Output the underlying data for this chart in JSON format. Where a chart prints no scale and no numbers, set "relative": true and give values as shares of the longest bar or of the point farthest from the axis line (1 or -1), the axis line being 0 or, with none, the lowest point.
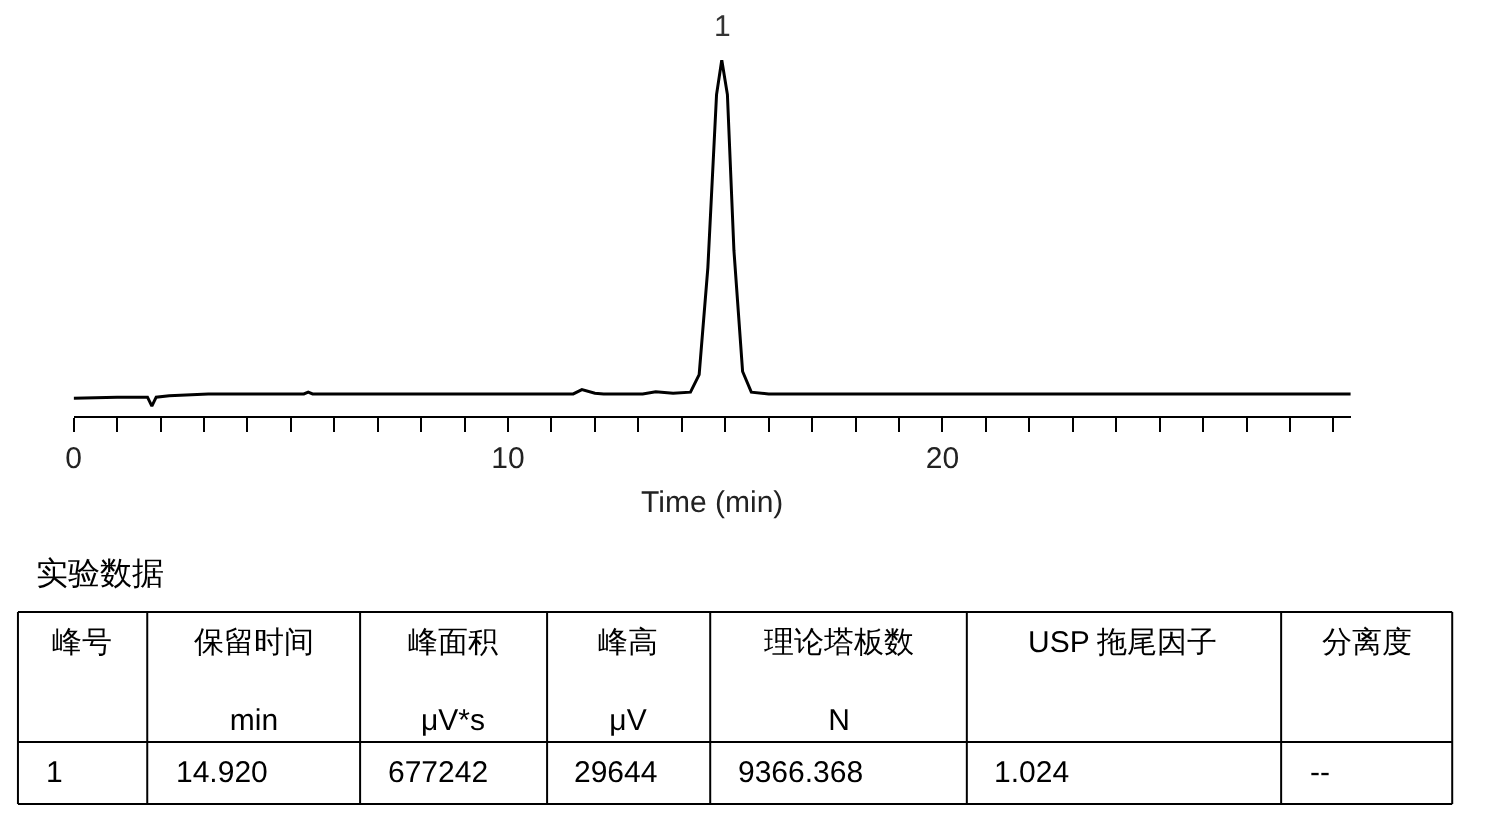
{
  "chart_data": [
    {
      "type": "line",
      "relative": true,
      "xlabel": "Time (min)",
      "x": [
        0,
        1.0,
        1.7,
        1.8,
        1.9,
        2.2,
        3.1,
        5.3,
        5.4,
        5.5,
        11.5,
        11.7,
        12.0,
        12.2,
        13.1,
        13.4,
        13.8,
        14.2,
        14.4,
        14.6,
        14.8,
        14.92,
        15.05,
        15.2,
        15.4,
        15.6,
        16.0,
        29.4
      ],
      "series": [
        {
          "color": "#000000",
          "values": [
            0.05,
            0.053,
            0.053,
            0.028,
            0.053,
            0.057,
            0.062,
            0.062,
            0.067,
            0.062,
            0.062,
            0.074,
            0.064,
            0.062,
            0.062,
            0.068,
            0.064,
            0.067,
            0.116,
            0.417,
            0.903,
            1,
            0.903,
            0.465,
            0.125,
            0.067,
            0.062,
            0.062
          ]
        }
      ],
      "xlim": [
        0,
        29.4
      ],
      "xticks": [
        0,
        {
          "value": 1,
          "label": null
        },
        {
          "value": 2,
          "label": null
        },
        {
          "value": 3,
          "label": null
        },
        {
          "value": 4,
          "label": null
        },
        {
          "value": 5,
          "label": null
        },
        {
          "value": 6,
          "label": null
        },
        {
          "value": 7,
          "label": null
        },
        {
          "value": 8,
          "label": null
        },
        {
          "value": 9,
          "label": null
        },
        10,
        {
          "value": 11,
          "label": null
        },
        {
          "value": 12,
          "label": null
        },
        {
          "value": 13,
          "label": null
        },
        {
          "value": 14,
          "label": null
        },
        {
          "value": 15,
          "label": null
        },
        {
          "value": 16,
          "label": null
        },
        {
          "value": 17,
          "label": null
        },
        {
          "value": 18,
          "label": null
        },
        {
          "value": 19,
          "label": null
        },
        20,
        {
          "value": 21,
          "label": null
        },
        {
          "value": 22,
          "label": null
        },
        {
          "value": 23,
          "label": null
        },
        {
          "value": 24,
          "label": null
        },
        {
          "value": 25,
          "label": null
        },
        {
          "value": 26,
          "label": null
        },
        {
          "value": 27,
          "label": null
        },
        {
          "value": 28,
          "label": null
        },
        {
          "value": 29,
          "label": null
        }
      ],
      "annotations": [
        {
          "text": "1",
          "x": 14.92,
          "y": 1
        }
      ],
      "marker": "none",
      "line_style": "solid"
    },
    {
      "type": "other",
      "title": "实验数据",
      "categories": [
        "峰号",
        "保留时间\nmin",
        "峰面积\nμV*s",
        "峰高\nμV",
        "理论塔板数\nN",
        "USP 拖尾因子",
        "分离度"
      ],
      "annotations": [
        "1",
        "14.920",
        "677242",
        "29644",
        "9366.368",
        "1.024",
        "--"
      ]
    }
  ]
}
